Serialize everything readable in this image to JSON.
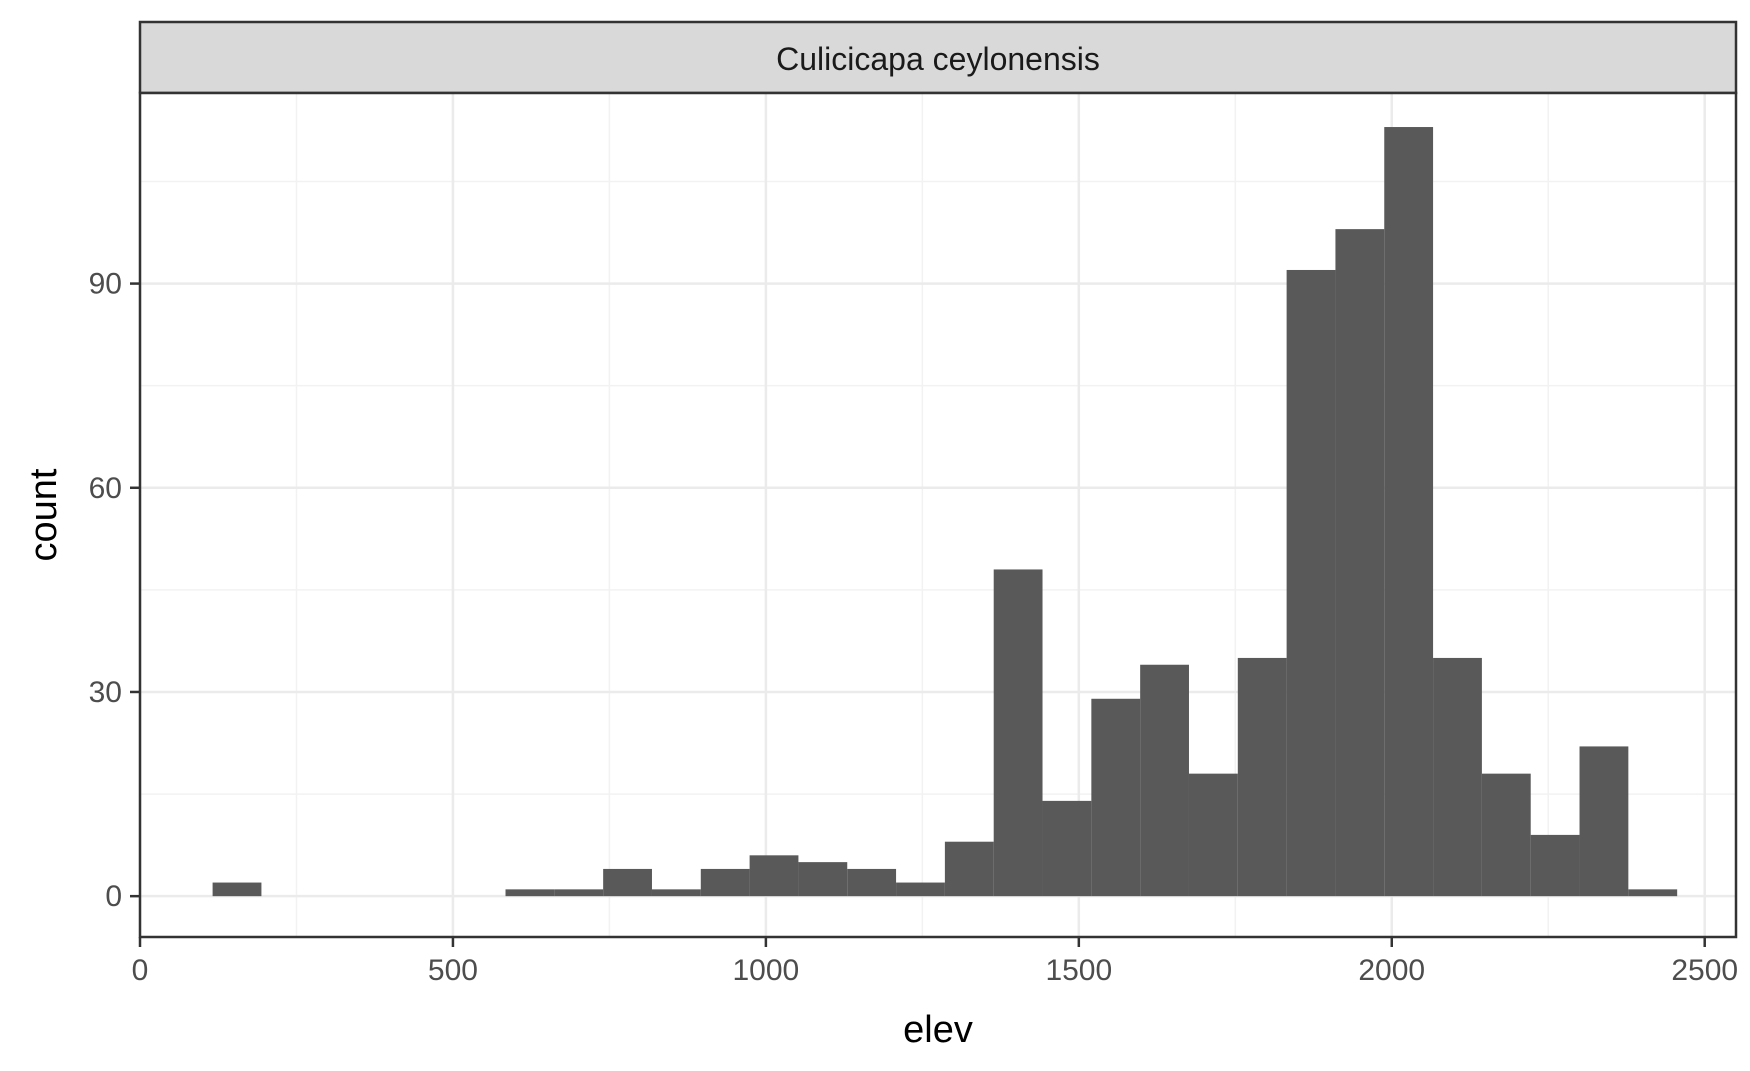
{
  "chart_data": {
    "type": "bar",
    "subtype": "histogram",
    "facet_label": "Culicicapa ceylonensis",
    "xlabel": "elev",
    "ylabel": "count",
    "xlim": [
      0,
      2550
    ],
    "ylim": [
      -6,
      118
    ],
    "x_ticks": [
      0,
      500,
      1000,
      1500,
      2000,
      2500
    ],
    "y_ticks": [
      0,
      30,
      60,
      90
    ],
    "bin_width": 78,
    "bins": [
      {
        "start": 116,
        "end": 194,
        "count": 2
      },
      {
        "start": 584,
        "end": 662,
        "count": 1
      },
      {
        "start": 662,
        "end": 740,
        "count": 1
      },
      {
        "start": 740,
        "end": 818,
        "count": 4
      },
      {
        "start": 818,
        "end": 896,
        "count": 1
      },
      {
        "start": 896,
        "end": 974,
        "count": 4
      },
      {
        "start": 974,
        "end": 1052,
        "count": 6
      },
      {
        "start": 1052,
        "end": 1130,
        "count": 5
      },
      {
        "start": 1130,
        "end": 1208,
        "count": 4
      },
      {
        "start": 1208,
        "end": 1286,
        "count": 2
      },
      {
        "start": 1286,
        "end": 1364,
        "count": 8
      },
      {
        "start": 1364,
        "end": 1442,
        "count": 48
      },
      {
        "start": 1442,
        "end": 1520,
        "count": 14
      },
      {
        "start": 1520,
        "end": 1598,
        "count": 29
      },
      {
        "start": 1598,
        "end": 1676,
        "count": 34
      },
      {
        "start": 1676,
        "end": 1754,
        "count": 18
      },
      {
        "start": 1754,
        "end": 1832,
        "count": 35
      },
      {
        "start": 1832,
        "end": 1910,
        "count": 92
      },
      {
        "start": 1910,
        "end": 1988,
        "count": 98
      },
      {
        "start": 1988,
        "end": 2066,
        "count": 113
      },
      {
        "start": 2066,
        "end": 2144,
        "count": 35
      },
      {
        "start": 2144,
        "end": 2222,
        "count": 18
      },
      {
        "start": 2222,
        "end": 2300,
        "count": 9
      },
      {
        "start": 2300,
        "end": 2378,
        "count": 22
      },
      {
        "start": 2378,
        "end": 2456,
        "count": 1
      }
    ],
    "grid": true,
    "legend": "none",
    "colors": {
      "bar": "#595959",
      "strip_bg": "#d9d9d9",
      "grid_major": "#ebebeb",
      "grid_minor": "#f2f2f2",
      "border": "#333333"
    }
  }
}
